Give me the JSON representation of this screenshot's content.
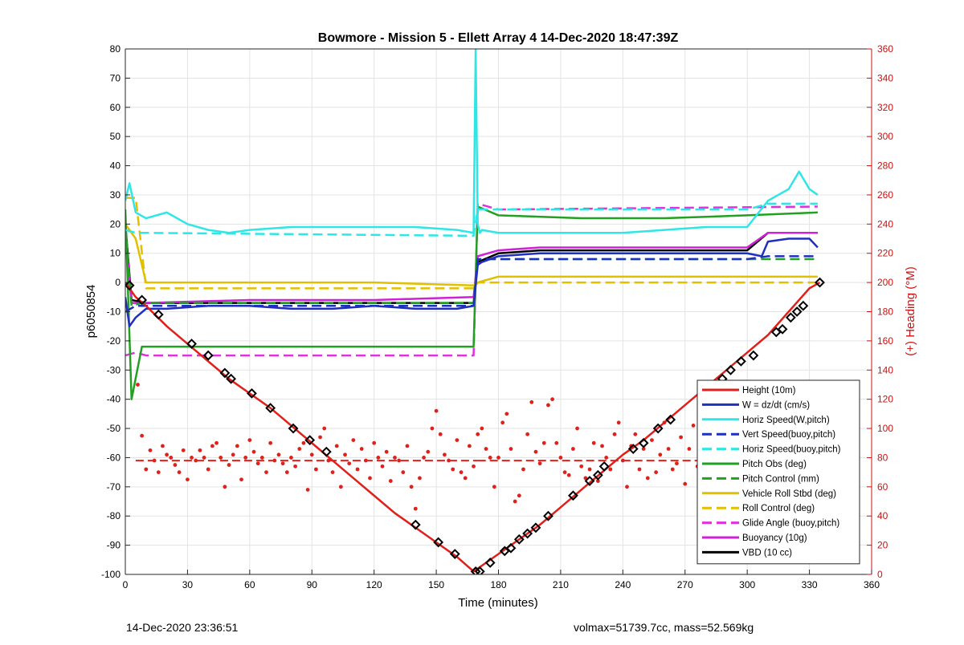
{
  "footer": {
    "timestamp": "14-Dec-2020 23:36:51",
    "stats": "volmax=51739.7cc, mass=52.569kg"
  },
  "colors": {
    "height": "#e0201b",
    "w": "#1f2fbf",
    "horiz": "#2ee6e6",
    "pitch": "#22a022",
    "roll": "#e0c000",
    "glide": "#e030e0",
    "buoyancy": "#d020d8",
    "vbd": "#000000",
    "heading": "#e0201b",
    "right_axis": "#cc1111"
  },
  "chart_data": {
    "type": "line",
    "title": "Bowmore - Mission 5 - Ellett Array 4 14-Dec-2020 18:47:39Z",
    "xlabel": "Time (minutes)",
    "ylabel": "p6050854",
    "y2label": "(+) Heading (°M)",
    "xlim": [
      0,
      360
    ],
    "ylim": [
      -100,
      80
    ],
    "y2lim": [
      0,
      360
    ],
    "xticks": [
      0,
      30,
      60,
      90,
      120,
      150,
      180,
      210,
      240,
      270,
      300,
      330,
      360
    ],
    "yticks": [
      -100,
      -90,
      -80,
      -70,
      -60,
      -50,
      -40,
      -30,
      -20,
      -10,
      0,
      10,
      20,
      30,
      40,
      50,
      60,
      70,
      80
    ],
    "y2ticks": [
      0,
      20,
      40,
      60,
      80,
      100,
      120,
      140,
      160,
      180,
      200,
      220,
      240,
      260,
      280,
      300,
      320,
      340,
      360
    ],
    "grid": true,
    "legend_position": "bottom-right",
    "series": [
      {
        "name": "Height (10m)",
        "key": "height",
        "style": "solid",
        "x": [
          0,
          5,
          10,
          20,
          30,
          40,
          50,
          60,
          70,
          80,
          90,
          100,
          110,
          120,
          130,
          140,
          150,
          160,
          168,
          170,
          180,
          190,
          200,
          210,
          220,
          230,
          240,
          250,
          260,
          270,
          280,
          290,
          300,
          310,
          320,
          330,
          335
        ],
        "y": [
          0,
          -5,
          -8,
          -15,
          -21,
          -27,
          -33,
          -38,
          -43,
          -49,
          -55,
          -61,
          -67,
          -73,
          -79,
          -84,
          -89,
          -94,
          -99,
          -98,
          -93,
          -88,
          -83,
          -77,
          -71,
          -65,
          -59,
          -54,
          -48,
          -42,
          -36,
          -30,
          -24,
          -18,
          -10,
          -2,
          0
        ]
      },
      {
        "name": "W = dz/dt (cm/s)",
        "key": "w",
        "style": "solid",
        "x": [
          0,
          2,
          5,
          10,
          20,
          40,
          60,
          80,
          100,
          120,
          140,
          160,
          168,
          170,
          172,
          180,
          200,
          220,
          240,
          260,
          280,
          300,
          307,
          310,
          320,
          330,
          334
        ],
        "y": [
          -5,
          -15,
          -12,
          -9,
          -9,
          -8,
          -8,
          -9,
          -9,
          -8,
          -9,
          -9,
          -8,
          6,
          7,
          9,
          10,
          10,
          10,
          10,
          10,
          10,
          9,
          14,
          15,
          15,
          12
        ]
      },
      {
        "name": "Horiz Speed(W,pitch)",
        "key": "horiz",
        "style": "solid",
        "x": [
          0,
          2,
          5,
          10,
          20,
          30,
          40,
          50,
          60,
          80,
          100,
          120,
          140,
          160,
          168,
          169,
          170,
          171,
          172,
          180,
          200,
          220,
          240,
          260,
          280,
          300,
          310,
          320,
          325,
          330,
          334
        ],
        "y": [
          28,
          34,
          24,
          22,
          24,
          20,
          18,
          17,
          18,
          19,
          19,
          19,
          19,
          18,
          17,
          80,
          20,
          17,
          18,
          17,
          17,
          17,
          17,
          18,
          19,
          19,
          28,
          32,
          38,
          32,
          30
        ]
      },
      {
        "name": "Vert Speed(buoy,pitch)",
        "key": "w",
        "style": "dashed",
        "x": [
          0,
          5,
          10,
          168,
          170,
          180,
          300,
          310,
          334
        ],
        "y": [
          -10,
          -8,
          -8,
          -8,
          8,
          8,
          8,
          9,
          9
        ]
      },
      {
        "name": "Horiz Speed(buoy,pitch)",
        "key": "horiz",
        "style": "dashed",
        "x": [
          0,
          5,
          10,
          168,
          170,
          180,
          300,
          310,
          334
        ],
        "y": [
          18,
          17,
          17,
          16,
          25,
          25,
          25,
          27,
          27
        ]
      },
      {
        "name": "Pitch Obs (deg)",
        "key": "pitch",
        "style": "solid",
        "x": [
          0,
          3,
          8,
          20,
          60,
          100,
          140,
          168,
          170,
          180,
          220,
          260,
          300,
          334
        ],
        "y": [
          25,
          -40,
          -22,
          -22,
          -22,
          -22,
          -22,
          -22,
          26,
          23,
          22,
          22,
          23,
          24
        ]
      },
      {
        "name": "Pitch Control (mm)",
        "key": "pitch",
        "style": "dashed",
        "x": [
          0,
          3,
          8,
          168,
          170,
          180,
          334
        ],
        "y": [
          20,
          -8,
          -7,
          -7,
          8,
          8,
          8
        ]
      },
      {
        "name": "Vehicle Roll Stbd (deg)",
        "key": "roll",
        "style": "solid",
        "x": [
          0,
          5,
          10,
          60,
          120,
          168,
          170,
          180,
          240,
          300,
          334
        ],
        "y": [
          20,
          15,
          0,
          0,
          0,
          -1,
          0,
          2,
          2,
          2,
          2
        ]
      },
      {
        "name": "Roll Control (deg)",
        "key": "roll",
        "style": "dashed",
        "x": [
          0,
          5,
          10,
          168,
          170,
          334
        ],
        "y": [
          29,
          29,
          -2,
          -2,
          0,
          0
        ]
      },
      {
        "name": "Glide Angle (buoy,pitch)",
        "key": "glide",
        "style": "dashed",
        "x": [
          0,
          5,
          10,
          168,
          170,
          180,
          334
        ],
        "y": [
          -25,
          -24,
          -25,
          -25,
          27,
          25,
          26
        ]
      },
      {
        "name": "Buoyancy (10g)",
        "key": "buoyancy",
        "style": "solid",
        "x": [
          0,
          3,
          10,
          60,
          120,
          168,
          170,
          180,
          200,
          240,
          300,
          310,
          334
        ],
        "y": [
          18,
          -7,
          -7,
          -6,
          -6,
          -5,
          9,
          11,
          12,
          12,
          12,
          17,
          17
        ]
      },
      {
        "name": "VBD (10 cc)",
        "key": "vbd",
        "style": "solid",
        "x": [
          0,
          3,
          10,
          60,
          120,
          168,
          170,
          180,
          200,
          240,
          300,
          310,
          334
        ],
        "y": [
          20,
          -6,
          -7,
          -7,
          -7,
          -7,
          7,
          10,
          11,
          11,
          11,
          17,
          17
        ]
      }
    ],
    "heading_dashed": {
      "key": "heading",
      "x": [
        5,
        170
      ],
      "y2": [
        78,
        78
      ],
      "x_b": [
        170,
        334
      ],
      "y2_b": [
        78,
        78
      ]
    },
    "heading_points": {
      "key": "heading",
      "x": [
        6,
        8,
        10,
        12,
        14,
        16,
        18,
        20,
        22,
        24,
        26,
        28,
        30,
        32,
        34,
        36,
        38,
        40,
        42,
        44,
        46,
        48,
        50,
        52,
        54,
        56,
        58,
        60,
        62,
        64,
        66,
        68,
        70,
        72,
        74,
        76,
        78,
        80,
        82,
        84,
        86,
        88,
        90,
        92,
        94,
        96,
        98,
        100,
        102,
        104,
        106,
        108,
        110,
        112,
        114,
        116,
        118,
        120,
        122,
        124,
        126,
        128,
        130,
        132,
        134,
        136,
        138,
        140,
        142,
        144,
        146,
        148,
        150,
        152,
        154,
        156,
        158,
        160,
        162,
        164,
        166,
        168,
        170,
        172,
        174,
        176,
        178,
        180,
        182,
        184,
        186,
        188,
        190,
        192,
        194,
        196,
        198,
        200,
        202,
        204,
        206,
        208,
        210,
        212,
        214,
        216,
        218,
        220,
        222,
        224,
        226,
        228,
        230,
        232,
        234,
        236,
        238,
        240,
        242,
        244,
        246,
        248,
        250,
        252,
        254,
        256,
        258,
        260,
        262,
        264,
        266,
        268,
        270,
        272,
        274,
        276,
        278,
        280,
        282,
        284,
        286,
        288,
        290,
        292,
        294,
        296,
        298,
        300,
        302,
        304,
        306,
        308,
        310,
        312,
        314,
        316,
        318,
        320,
        322,
        324,
        326,
        328,
        330,
        332
      ],
      "y2": [
        130,
        95,
        72,
        85,
        78,
        70,
        88,
        82,
        80,
        75,
        70,
        85,
        65,
        80,
        78,
        85,
        80,
        72,
        88,
        90,
        80,
        60,
        75,
        82,
        88,
        65,
        80,
        92,
        84,
        76,
        80,
        70,
        90,
        78,
        82,
        76,
        70,
        80,
        74,
        86,
        90,
        58,
        82,
        72,
        94,
        100,
        78,
        70,
        88,
        60,
        82,
        76,
        92,
        72,
        86,
        78,
        66,
        90,
        80,
        74,
        84,
        64,
        80,
        78,
        70,
        88,
        60,
        45,
        66,
        80,
        84,
        100,
        112,
        96,
        82,
        78,
        72,
        92,
        70,
        66,
        88,
        74,
        96,
        100,
        86,
        80,
        60,
        80,
        104,
        110,
        86,
        50,
        54,
        72,
        96,
        118,
        84,
        76,
        90,
        116,
        120,
        90,
        80,
        70,
        68,
        86,
        100,
        74,
        66,
        72,
        90,
        64,
        88,
        80,
        72,
        96,
        104,
        78,
        60,
        88,
        96,
        72,
        86,
        66,
        92,
        70,
        82,
        104,
        86,
        72,
        76,
        94,
        62,
        86,
        102,
        74,
        80,
        88,
        64,
        92,
        84,
        78,
        70,
        100,
        110,
        76,
        68,
        84,
        90,
        106,
        80,
        72,
        96,
        78,
        92,
        84,
        66,
        88,
        102,
        74,
        96,
        82,
        70,
        80
      ]
    },
    "markers": {
      "x": [
        2,
        8,
        16,
        32,
        40,
        48,
        51,
        61,
        70,
        81,
        89,
        97,
        140,
        151,
        159,
        169,
        171,
        176,
        183,
        186,
        190,
        194,
        198,
        204,
        216,
        224,
        228,
        231,
        245,
        250,
        257,
        263,
        281,
        288,
        292,
        297,
        303,
        314,
        317,
        321,
        324,
        327,
        335
      ],
      "y": [
        -1,
        -6,
        -11,
        -21,
        -25,
        -31,
        -33,
        -38,
        -43,
        -50,
        -54,
        -58,
        -83,
        -89,
        -93,
        -99,
        -99,
        -96,
        -92,
        -91,
        -88,
        -86,
        -84,
        -80,
        -73,
        -68,
        -66,
        -63,
        -57,
        -55,
        -50,
        -47,
        -36,
        -33,
        -30,
        -27,
        -25,
        -17,
        -16,
        -12,
        -10,
        -8,
        0
      ]
    }
  }
}
